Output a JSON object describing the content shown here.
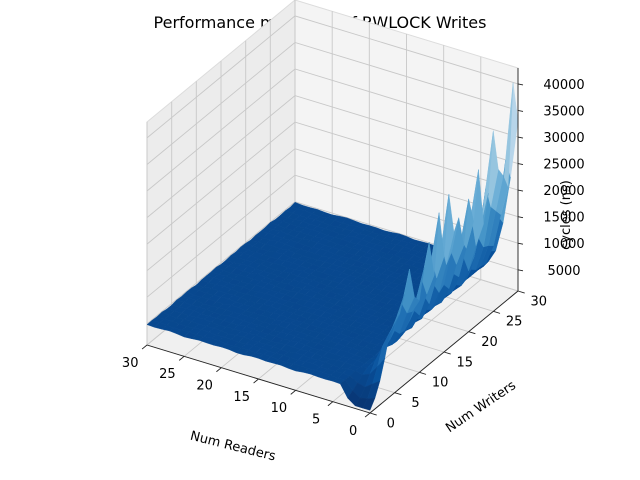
{
  "chart_data": {
    "type": "surface",
    "title": "Performance mountain of RWLOCK Writes",
    "xlabel": "Num Readers",
    "ylabel": "Num Writers",
    "zlabel": "cycles (ns)",
    "xlim": [
      0,
      30
    ],
    "ylim": [
      0,
      30
    ],
    "zlim": [
      1000,
      43000
    ],
    "x_ticks": [
      0,
      5,
      10,
      15,
      20,
      25,
      30
    ],
    "y_ticks": [
      0,
      5,
      10,
      15,
      20,
      25,
      30
    ],
    "z_ticks": [
      5000,
      10000,
      15000,
      20000,
      25000,
      30000,
      35000,
      40000
    ],
    "colormap": "Blues",
    "surface_description_values": {
      "baseline_cycles": 4800,
      "peak_cycles": 41000,
      "peak_region": {
        "num_readers": [
          0,
          2
        ],
        "num_writers": [
          10,
          30
        ]
      }
    },
    "z_by_readers": {
      "readers": [
        0,
        1,
        2,
        3
      ],
      "z": [
        [
          1500,
          3000,
          5500,
          9000,
          13000,
          14000,
          15000,
          18000,
          22000,
          16000,
          14500,
          20000,
          24000,
          17000,
          28000,
          19000,
          30000,
          22000,
          24000,
          18000,
          26000,
          21000,
          30000,
          19000,
          24000,
          35000,
          27000,
          25000,
          22000,
          41000,
          33000
        ],
        [
          1500,
          2500,
          4500,
          7000,
          10000,
          11000,
          12000,
          13500,
          15000,
          12500,
          12000,
          14000,
          16500,
          13000,
          19000,
          14500,
          20000,
          15500,
          17000,
          14000,
          18000,
          15500,
          21000,
          14500,
          17500,
          24000,
          19500,
          18000,
          16500,
          26000,
          22000
        ],
        [
          1500,
          2200,
          3500,
          5200,
          6800,
          7300,
          7800,
          8500,
          9500,
          8200,
          8000,
          9000,
          10200,
          8600,
          11500,
          9200,
          12000,
          9800,
          10500,
          9000,
          11000,
          9700,
          12500,
          9300,
          10800,
          14000,
          11500,
          11000,
          10200,
          15000,
          13000
        ],
        [
          2500,
          3200,
          3900,
          4600,
          5200,
          5400,
          5500,
          5800,
          6100,
          5700,
          5600,
          5900,
          6300,
          5800,
          6700,
          6000,
          6900,
          6200,
          6400,
          6000,
          6600,
          6200,
          7000,
          6100,
          6500,
          7600,
          6800,
          6700,
          6400,
          8000,
          7300
        ]
      ]
    }
  }
}
